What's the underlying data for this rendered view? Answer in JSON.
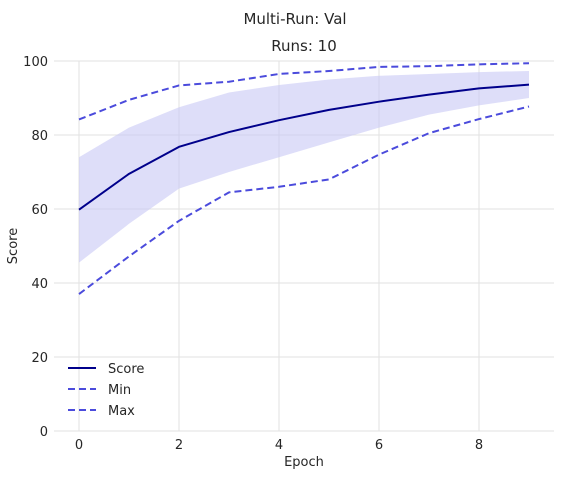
{
  "chart_data": {
    "type": "line",
    "suptitle": "Multi-Run: Val",
    "title": "Runs: 10",
    "xlabel": "Epoch",
    "ylabel": "Score",
    "xlim": [
      -0.5,
      9.5
    ],
    "ylim": [
      0,
      100
    ],
    "xticks": [
      0,
      2,
      4,
      6,
      8
    ],
    "yticks": [
      0,
      20,
      40,
      60,
      80,
      100
    ],
    "grid": true,
    "legend_position": "lower-left",
    "x": [
      0,
      1,
      2,
      3,
      4,
      5,
      6,
      7,
      8,
      9
    ],
    "band": {
      "lower": [
        45.5,
        56.0,
        65.5,
        70.0,
        74.0,
        78.0,
        82.0,
        85.5,
        88.0,
        90.0
      ],
      "upper": [
        74.0,
        82.0,
        87.5,
        91.5,
        93.5,
        95.0,
        96.0,
        96.5,
        97.0,
        97.3
      ]
    },
    "series": [
      {
        "name": "Score",
        "style": "solid",
        "color": "#00008b",
        "values": [
          59.8,
          69.5,
          76.8,
          80.8,
          84.0,
          86.8,
          89.0,
          90.9,
          92.6,
          93.6
        ]
      },
      {
        "name": "Min",
        "style": "dashed",
        "color": "#4b4bdc",
        "values": [
          37.0,
          47.2,
          56.8,
          64.5,
          66.0,
          68.0,
          74.7,
          80.5,
          84.3,
          87.7
        ]
      },
      {
        "name": "Max",
        "style": "dashed",
        "color": "#4b4bdc",
        "values": [
          84.2,
          89.5,
          93.4,
          94.4,
          96.5,
          97.3,
          98.4,
          98.6,
          99.1,
          99.4
        ]
      }
    ],
    "colors": {
      "band": "#c8c8f5",
      "grid": "#e2e2e2",
      "axis_bg": "#ffffff"
    }
  }
}
